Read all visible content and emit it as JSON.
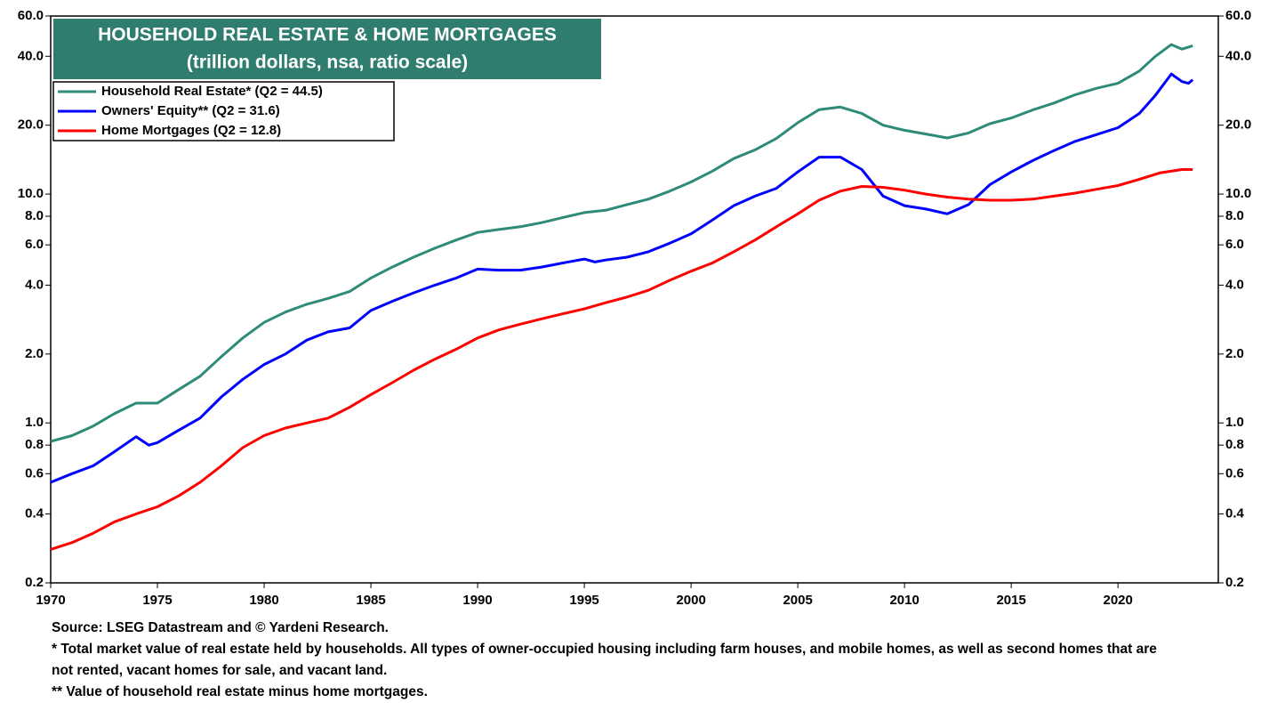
{
  "chart_data": {
    "type": "line",
    "title": "HOUSEHOLD REAL ESTATE & HOME MORTGAGES",
    "subtitle": "(trillion dollars, nsa, ratio scale)",
    "log_scale": true,
    "legend": "top-left",
    "grid": false,
    "xlim": [
      1970,
      2024.7
    ],
    "xticks": [
      1970,
      1975,
      1980,
      1985,
      1990,
      1995,
      2000,
      2005,
      2010,
      2015,
      2020
    ],
    "ylim": [
      0.2,
      60
    ],
    "yticks": [
      {
        "value": 0.2,
        "label": "0.2"
      },
      {
        "value": 0.4,
        "label": "0.4"
      },
      {
        "value": 0.6,
        "label": "0.6"
      },
      {
        "value": 0.8,
        "label": "0.8"
      },
      {
        "value": 1,
        "label": "1.0"
      },
      {
        "value": 2,
        "label": "2.0"
      },
      {
        "value": 4,
        "label": "4.0"
      },
      {
        "value": 6,
        "label": "6.0"
      },
      {
        "value": 8,
        "label": "8.0"
      },
      {
        "value": 10,
        "label": "10.0"
      },
      {
        "value": 20,
        "label": "20.0"
      },
      {
        "value": 40,
        "label": "40.0"
      },
      {
        "value": 60,
        "label": "60.0"
      }
    ],
    "y2lim": [
      0.2,
      60
    ],
    "y2ticks": [
      {
        "value": 0.2,
        "label": "0.2"
      },
      {
        "value": 0.4,
        "label": "0.4"
      },
      {
        "value": 0.6,
        "label": "0.6"
      },
      {
        "value": 0.8,
        "label": "0.8"
      },
      {
        "value": 1,
        "label": "1.0"
      },
      {
        "value": 2,
        "label": "2.0"
      },
      {
        "value": 4,
        "label": "4.0"
      },
      {
        "value": 6,
        "label": "6.0"
      },
      {
        "value": 8,
        "label": "8.0"
      },
      {
        "value": 10,
        "label": "10.0"
      },
      {
        "value": 20,
        "label": "20.0"
      },
      {
        "value": 40,
        "label": "40.0"
      },
      {
        "value": 60,
        "label": "60.0"
      }
    ],
    "series": [
      {
        "name": "Household Real Estate* (Q2 = 44.5)",
        "color": "#2e8b78",
        "x": [
          1970,
          1971,
          1972,
          1973,
          1974,
          1975,
          1976,
          1977,
          1978,
          1979,
          1980,
          1981,
          1982,
          1983,
          1984,
          1985,
          1986,
          1987,
          1988,
          1989,
          1990,
          1991,
          1992,
          1993,
          1994,
          1995,
          1996,
          1997,
          1998,
          1999,
          2000,
          2001,
          2002,
          2003,
          2004,
          2005,
          2006,
          2007,
          2008,
          2009,
          2010,
          2011,
          2012,
          2013,
          2014,
          2015,
          2016,
          2017,
          2018,
          2019,
          2020,
          2021,
          2021.75,
          2022.5,
          2023,
          2023.5
        ],
        "values": [
          0.83,
          0.88,
          0.97,
          1.1,
          1.22,
          1.22,
          1.4,
          1.6,
          1.95,
          2.35,
          2.75,
          3.05,
          3.3,
          3.5,
          3.75,
          4.3,
          4.8,
          5.3,
          5.8,
          6.3,
          6.8,
          7.0,
          7.2,
          7.5,
          7.9,
          8.3,
          8.5,
          9.0,
          9.5,
          10.3,
          11.3,
          12.6,
          14.3,
          15.6,
          17.5,
          20.5,
          23.4,
          24.0,
          22.5,
          20.0,
          19.0,
          18.3,
          17.6,
          18.5,
          20.3,
          21.5,
          23.3,
          25.0,
          27.2,
          29.0,
          30.5,
          34.5,
          40,
          45,
          43,
          44.5
        ]
      },
      {
        "name": "Owners' Equity** (Q2 = 31.6)",
        "color": "#0000ff",
        "x": [
          1970,
          1971,
          1972,
          1973,
          1974,
          1974.6,
          1975,
          1976,
          1977,
          1978,
          1979,
          1980,
          1981,
          1982,
          1983,
          1984,
          1985,
          1986,
          1987,
          1988,
          1989,
          1990,
          1991,
          1992,
          1993,
          1994,
          1995,
          1995.5,
          1996,
          1997,
          1998,
          1999,
          2000,
          2001,
          2002,
          2003,
          2004,
          2005,
          2006,
          2007,
          2008,
          2009,
          2010,
          2011,
          2012,
          2013,
          2014,
          2015,
          2016,
          2017,
          2018,
          2019,
          2020,
          2021,
          2021.75,
          2022.5,
          2023,
          2023.3,
          2023.5
        ],
        "values": [
          0.55,
          0.6,
          0.65,
          0.75,
          0.87,
          0.8,
          0.82,
          0.93,
          1.05,
          1.3,
          1.55,
          1.8,
          2.0,
          2.3,
          2.5,
          2.6,
          3.1,
          3.4,
          3.7,
          4.0,
          4.3,
          4.7,
          4.65,
          4.65,
          4.8,
          5.0,
          5.2,
          5.05,
          5.15,
          5.3,
          5.6,
          6.1,
          6.7,
          7.7,
          8.9,
          9.8,
          10.6,
          12.5,
          14.5,
          14.5,
          12.8,
          9.8,
          8.9,
          8.6,
          8.2,
          9.0,
          11.0,
          12.5,
          14.0,
          15.5,
          17.0,
          18.2,
          19.5,
          22.5,
          27,
          33.5,
          31,
          30.5,
          31.6
        ]
      },
      {
        "name": "Home Mortgages  (Q2 = 12.8)",
        "color": "#ff0000",
        "x": [
          1970,
          1971,
          1972,
          1973,
          1974,
          1975,
          1976,
          1977,
          1978,
          1979,
          1980,
          1981,
          1982,
          1983,
          1984,
          1985,
          1986,
          1987,
          1988,
          1989,
          1990,
          1991,
          1992,
          1993,
          1994,
          1995,
          1996,
          1997,
          1998,
          1999,
          2000,
          2001,
          2002,
          2003,
          2004,
          2005,
          2006,
          2007,
          2008,
          2009,
          2010,
          2011,
          2012,
          2013,
          2014,
          2015,
          2016,
          2017,
          2018,
          2019,
          2020,
          2021,
          2022,
          2023,
          2023.5
        ],
        "values": [
          0.28,
          0.3,
          0.33,
          0.37,
          0.4,
          0.43,
          0.48,
          0.55,
          0.65,
          0.78,
          0.88,
          0.95,
          1.0,
          1.05,
          1.17,
          1.33,
          1.5,
          1.7,
          1.9,
          2.1,
          2.35,
          2.55,
          2.7,
          2.85,
          3.0,
          3.15,
          3.35,
          3.55,
          3.8,
          4.2,
          4.6,
          5.0,
          5.6,
          6.3,
          7.2,
          8.2,
          9.4,
          10.3,
          10.8,
          10.7,
          10.4,
          10.0,
          9.7,
          9.5,
          9.4,
          9.4,
          9.5,
          9.8,
          10.1,
          10.5,
          10.9,
          11.6,
          12.4,
          12.8,
          12.8
        ]
      }
    ],
    "notes": [
      "Source: LSEG Datastream and © Yardeni Research.",
      "* Total market value of real estate held by households. All types of owner-occupied housing including farm houses, and mobile homes, as well as second homes that are not rented, vacant homes for sale, and vacant land.",
      "** Value of household real estate minus home mortgages."
    ]
  }
}
